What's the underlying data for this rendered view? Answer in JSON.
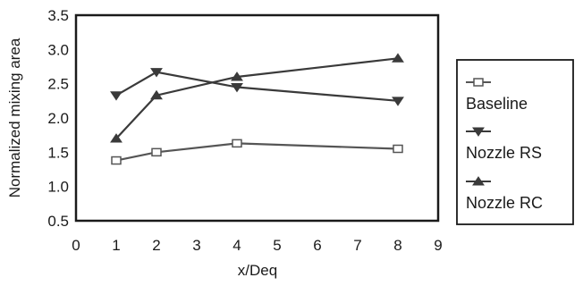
{
  "chart_data": {
    "type": "line",
    "xlabel": "x/Deq",
    "ylabel": "Normalized mixing area",
    "xlim": [
      0,
      9
    ],
    "ylim": [
      0.5,
      3.5
    ],
    "x_ticks": [
      "0",
      "1",
      "2",
      "3",
      "4",
      "5",
      "6",
      "7",
      "8",
      "9"
    ],
    "y_ticks": [
      "0.5",
      "1.0",
      "1.5",
      "2.0",
      "2.5",
      "3.0",
      "3.5"
    ],
    "legend_position": "right",
    "grid": false,
    "series": [
      {
        "name": "Baseline",
        "marker": "square",
        "color": "#555555",
        "x": [
          1,
          2,
          4,
          8
        ],
        "y": [
          1.38,
          1.5,
          1.63,
          1.55
        ]
      },
      {
        "name": "Nozzle RS",
        "marker": "triangle-down",
        "color": "#3a3a3a",
        "x": [
          1,
          2,
          4,
          8
        ],
        "y": [
          2.33,
          2.67,
          2.45,
          2.25
        ]
      },
      {
        "name": "Nozzle RC",
        "marker": "triangle-up",
        "color": "#3a3a3a",
        "x": [
          1,
          2,
          4,
          8
        ],
        "y": [
          1.7,
          2.33,
          2.6,
          2.87
        ]
      }
    ]
  }
}
